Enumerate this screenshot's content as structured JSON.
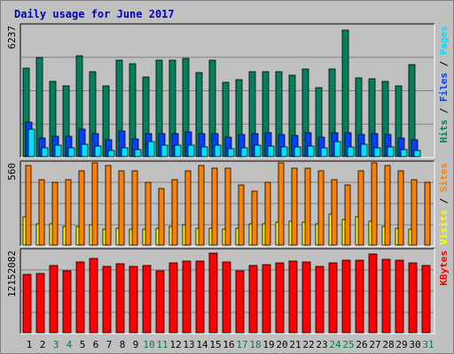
{
  "chart_data": {
    "type": "bar",
    "title": "Daily usage for June 2017",
    "categories": [
      "1",
      "2",
      "3",
      "4",
      "5",
      "6",
      "7",
      "8",
      "9",
      "10",
      "11",
      "12",
      "13",
      "14",
      "15",
      "16",
      "17",
      "18",
      "19",
      "20",
      "21",
      "22",
      "23",
      "24",
      "25",
      "26",
      "27",
      "28",
      "29",
      "30",
      "31"
    ],
    "weekend_days": [
      "3",
      "4",
      "10",
      "11",
      "17",
      "18",
      "24",
      "25",
      "31"
    ],
    "colors": {
      "background": "#c0c0c0",
      "title": "#0000c0",
      "hits": "#00805c",
      "files": "#0040ff",
      "pages": "#00e0ff",
      "visits": "#ffff00",
      "sites": "#ff8000",
      "kbytes": "#ff0000",
      "weekday_label": "#000000",
      "weekend_label": "#008040"
    },
    "panels": [
      {
        "id": "requests",
        "max_label": "6237",
        "ymax": 6237,
        "legend": [
          {
            "text": "Hits",
            "color": "#00805c"
          },
          {
            "text": " / ",
            "color": "#000000"
          },
          {
            "text": "Files",
            "color": "#0040ff"
          },
          {
            "text": " / ",
            "color": "#000000"
          },
          {
            "text": "Pages",
            "color": "#00e0ff"
          }
        ],
        "series": [
          {
            "name": "Hits",
            "color": "#00805c",
            "values": [
              4280,
              4820,
              3640,
              3420,
              4920,
              4140,
              3420,
              4700,
              4520,
              3860,
              4700,
              4700,
              4760,
              4080,
              4700,
              3620,
              3760,
              4140,
              4140,
              4140,
              3960,
              4240,
              3340,
              4240,
              6140,
              3840,
              3800,
              3660,
              3460,
              4480,
              0
            ]
          },
          {
            "name": "Files",
            "color": "#0040ff",
            "values": [
              1680,
              920,
              1000,
              1000,
              1320,
              1120,
              820,
              1260,
              880,
              1100,
              1120,
              1120,
              1200,
              1100,
              1100,
              960,
              1060,
              1100,
              1140,
              1080,
              1020,
              1180,
              960,
              1180,
              1160,
              1080,
              1100,
              1060,
              920,
              820,
              0
            ]
          },
          {
            "name": "Pages",
            "color": "#00e0ff",
            "values": [
              1340,
              420,
              560,
              440,
              620,
              520,
              300,
              440,
              340,
              720,
              560,
              540,
              560,
              460,
              560,
              400,
              440,
              540,
              500,
              480,
              480,
              520,
              440,
              720,
              460,
              620,
              420,
              460,
              360,
              280,
              0
            ]
          }
        ]
      },
      {
        "id": "visits",
        "max_label": "560",
        "ymax": 560,
        "legend": [
          {
            "text": "Visits",
            "color": "#ffff00"
          },
          {
            "text": " / ",
            "color": "#000000"
          },
          {
            "text": "Sites",
            "color": "#ff8000"
          }
        ],
        "series": [
          {
            "name": "Visits",
            "color": "#ffff00",
            "values": [
              200,
              150,
              150,
              130,
              130,
              140,
              110,
              120,
              110,
              110,
              120,
              130,
              140,
              120,
              120,
              110,
              120,
              150,
              150,
              160,
              170,
              160,
              150,
              220,
              180,
              200,
              170,
              130,
              120,
              110,
              0
            ]
          },
          {
            "name": "Sites",
            "color": "#ff8000",
            "values": [
              560,
              460,
              440,
              460,
              520,
              580,
              560,
              520,
              520,
              440,
              400,
              460,
              520,
              560,
              540,
              540,
              420,
              380,
              440,
              580,
              540,
              540,
              520,
              460,
              420,
              520,
              580,
              560,
              520,
              460,
              440
            ]
          }
        ]
      },
      {
        "id": "kbytes",
        "max_label": "12152082",
        "ymax": 12152082,
        "legend": [
          {
            "text": "KBytes",
            "color": "#ff0000"
          }
        ],
        "series": [
          {
            "name": "KBytes",
            "color": "#ff0000",
            "values": [
              8900000,
              9100000,
              10200000,
              9400000,
              10800000,
              11300000,
              10100000,
              10500000,
              10100000,
              10200000,
              9400000,
              10600000,
              11000000,
              11000000,
              12100000,
              10800000,
              9400000,
              10200000,
              10400000,
              10700000,
              11000000,
              10800000,
              10100000,
              10700000,
              11100000,
              11100000,
              12000000,
              11200000,
              11100000,
              10700000,
              10300000
            ]
          }
        ]
      }
    ]
  }
}
